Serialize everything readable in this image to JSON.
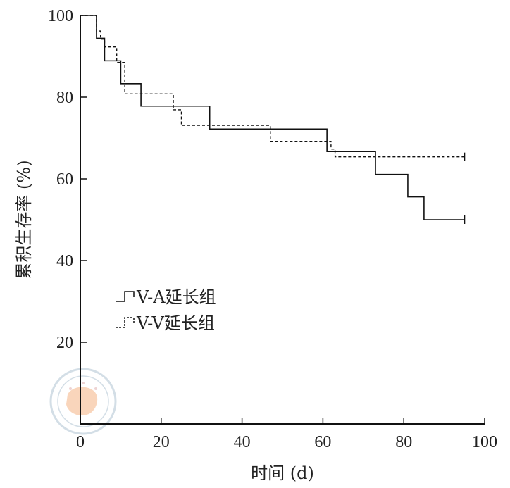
{
  "chart_data": {
    "type": "line",
    "step": true,
    "xlabel": "时间 (d)",
    "ylabel": "累积生存率 (%)",
    "xlim": [
      0,
      100
    ],
    "ylim": [
      0,
      100
    ],
    "xticks": [
      0,
      20,
      40,
      60,
      80,
      100
    ],
    "yticks": [
      20,
      40,
      60,
      80,
      100
    ],
    "grid": false,
    "legend_position": "left",
    "series": [
      {
        "name": "V-A延长组",
        "line_style": "solid",
        "color": "#111111",
        "x": [
          0,
          4,
          6,
          10,
          15,
          32,
          61,
          73,
          81,
          85,
          95
        ],
        "y": [
          100,
          94.4,
          88.9,
          83.3,
          77.8,
          72.2,
          66.7,
          61.1,
          55.6,
          50.0,
          50.0
        ],
        "censored": [
          {
            "x": 95,
            "y": 50.0
          }
        ]
      },
      {
        "name": "V-V延长组",
        "line_style": "dashed",
        "color": "#111111",
        "x": [
          0,
          4,
          5,
          6,
          9,
          11,
          23,
          25,
          47,
          62,
          63,
          95
        ],
        "y": [
          100,
          96.2,
          94.2,
          92.3,
          88.5,
          80.8,
          76.9,
          73.1,
          69.2,
          67.3,
          65.4,
          65.4
        ],
        "censored": [
          {
            "x": 95,
            "y": 65.4
          }
        ]
      }
    ]
  }
}
